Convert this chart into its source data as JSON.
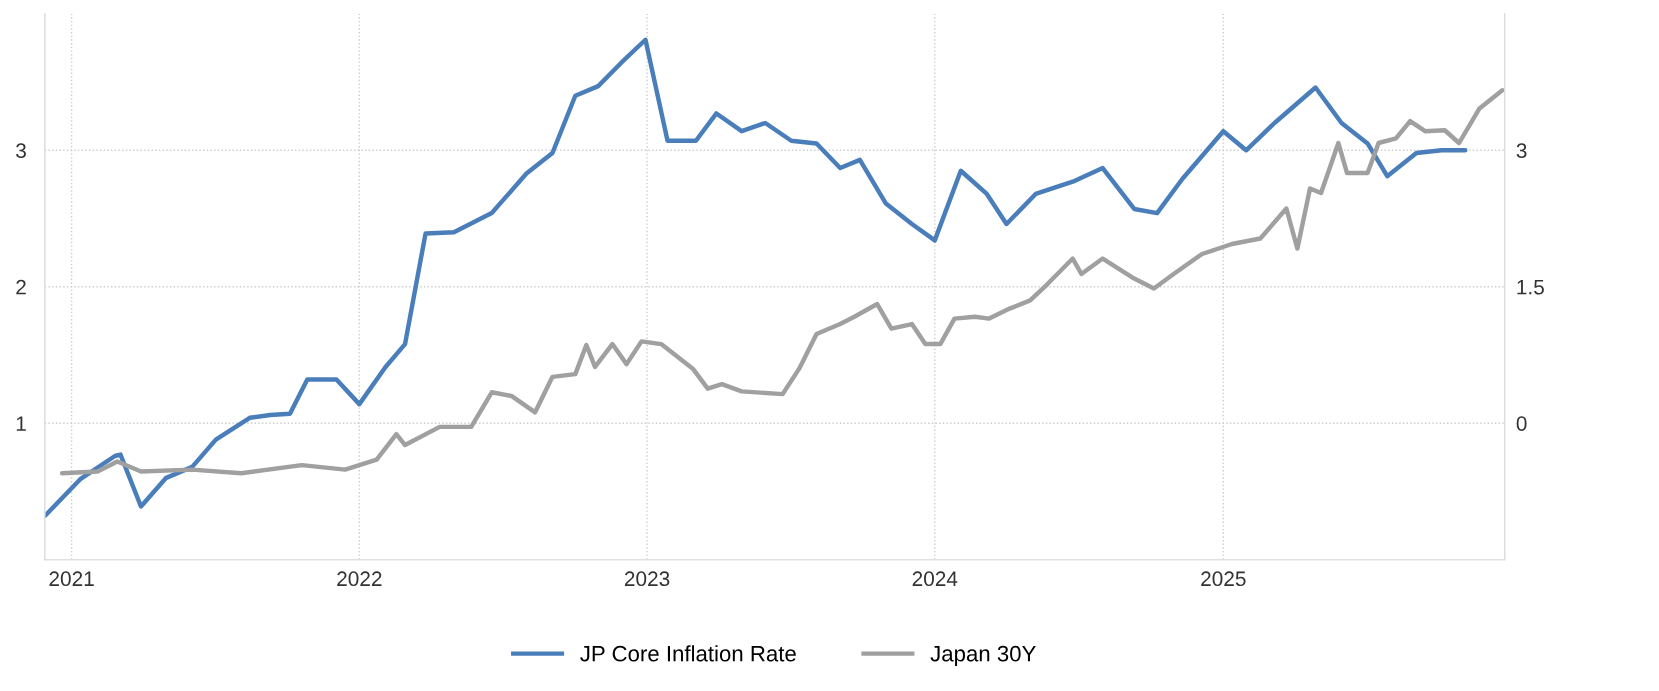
{
  "chart_data": {
    "type": "line",
    "xlim": [
      "2020-11-28",
      "2025-12-24"
    ],
    "xticks": [
      {
        "value": "2021-01-01",
        "label": "2021"
      },
      {
        "value": "2022-01-01",
        "label": "2022"
      },
      {
        "value": "2023-01-01",
        "label": "2023"
      },
      {
        "value": "2024-01-01",
        "label": "2024"
      },
      {
        "value": "2025-01-01",
        "label": "2025"
      }
    ],
    "ylim": [
      0,
      4
    ],
    "yticks": [
      1,
      2,
      3
    ],
    "y2lim": [
      -1.5,
      4.5
    ],
    "y2ticks": [
      0,
      1.5,
      3
    ],
    "grid": true,
    "legend": "bottom",
    "marker": "none",
    "line_style": "solid",
    "series": [
      {
        "name": "JP Core Inflation Rate",
        "color": "#4a7ebb",
        "x": [
          "2020-11-28",
          "2021-01-12",
          "2021-02-25",
          "2021-03-04",
          "2021-03-30",
          "2021-05-01",
          "2021-06-03",
          "2021-07-03",
          "2021-08-15",
          "2021-09-10",
          "2021-10-05",
          "2021-10-27",
          "2021-12-03",
          "2022-01-01",
          "2022-02-03",
          "2022-02-28",
          "2022-03-26",
          "2022-05-01",
          "2022-06-18",
          "2022-08-01",
          "2022-09-03",
          "2022-10-02",
          "2022-10-31",
          "2022-11-29",
          "2022-12-30",
          "2023-01-27",
          "2023-03-04",
          "2023-03-30",
          "2023-05-01",
          "2023-05-31",
          "2023-07-03",
          "2023-08-04",
          "2023-09-03",
          "2023-09-28",
          "2023-10-31",
          "2023-12-03",
          "2024-01-01",
          "2024-02-03",
          "2024-03-07",
          "2024-04-01",
          "2024-05-08",
          "2024-06-24",
          "2024-08-01",
          "2024-09-10",
          "2024-10-09",
          "2024-11-10",
          "2025-01-01",
          "2025-01-30",
          "2025-03-07",
          "2025-04-28",
          "2025-05-31",
          "2025-07-03",
          "2025-07-28",
          "2025-09-03",
          "2025-10-05",
          "2025-11-04"
        ],
        "values": [
          0.32,
          0.59,
          0.76,
          0.77,
          0.39,
          0.6,
          0.68,
          0.88,
          1.04,
          1.06,
          1.07,
          1.32,
          1.32,
          1.14,
          1.41,
          1.58,
          2.39,
          2.4,
          2.54,
          2.83,
          2.98,
          3.4,
          3.47,
          3.64,
          3.81,
          3.07,
          3.07,
          3.27,
          3.14,
          3.2,
          3.07,
          3.05,
          2.87,
          2.93,
          2.61,
          2.46,
          2.34,
          2.85,
          2.68,
          2.46,
          2.68,
          2.77,
          2.87,
          2.57,
          2.54,
          2.79,
          3.14,
          3.0,
          3.2,
          3.46,
          3.2,
          3.05,
          2.81,
          2.98,
          3.0,
          3.0
        ]
      },
      {
        "name": "Japan 30Y",
        "color": "#a0a0a0",
        "axis": "y2",
        "x": [
          "2020-12-20",
          "2021-02-03",
          "2021-02-28",
          "2021-03-30",
          "2021-06-03",
          "2021-08-04",
          "2021-10-20",
          "2021-12-14",
          "2022-01-23",
          "2022-02-17",
          "2022-02-28",
          "2022-04-13",
          "2022-05-23",
          "2022-06-18",
          "2022-07-13",
          "2022-08-12",
          "2022-09-03",
          "2022-10-02",
          "2022-10-16",
          "2022-10-27",
          "2022-11-18",
          "2022-12-06",
          "2022-12-25",
          "2023-01-19",
          "2023-02-28",
          "2023-03-19",
          "2023-04-06",
          "2023-05-01",
          "2023-06-22",
          "2023-07-13",
          "2023-08-04",
          "2023-09-03",
          "2023-09-21",
          "2023-10-20",
          "2023-11-07",
          "2023-12-03",
          "2023-12-20",
          "2024-01-08",
          "2024-01-26",
          "2024-02-21",
          "2024-03-10",
          "2024-04-05",
          "2024-05-01",
          "2024-05-23",
          "2024-06-24",
          "2024-07-05",
          "2024-08-01",
          "2024-09-10",
          "2024-10-05",
          "2024-10-30",
          "2024-12-05",
          "2025-01-12",
          "2025-02-17",
          "2025-03-22",
          "2025-04-05",
          "2025-04-21",
          "2025-05-05",
          "2025-05-27",
          "2025-06-07",
          "2025-07-03",
          "2025-07-17",
          "2025-08-08",
          "2025-08-26",
          "2025-09-14",
          "2025-10-09",
          "2025-10-27",
          "2025-11-22",
          "2025-12-21"
        ],
        "values": [
          -0.55,
          -0.53,
          -0.42,
          -0.53,
          -0.51,
          -0.55,
          -0.46,
          -0.51,
          -0.4,
          -0.12,
          -0.24,
          -0.04,
          -0.04,
          0.34,
          0.3,
          0.12,
          0.51,
          0.54,
          0.86,
          0.62,
          0.87,
          0.65,
          0.9,
          0.87,
          0.6,
          0.38,
          0.43,
          0.35,
          0.32,
          0.6,
          0.98,
          1.09,
          1.17,
          1.31,
          1.04,
          1.09,
          0.87,
          0.87,
          1.15,
          1.17,
          1.15,
          1.26,
          1.35,
          1.53,
          1.81,
          1.64,
          1.81,
          1.59,
          1.48,
          1.64,
          1.86,
          1.97,
          2.03,
          2.36,
          1.92,
          2.58,
          2.53,
          3.08,
          2.75,
          2.75,
          3.08,
          3.13,
          3.32,
          3.21,
          3.22,
          3.08,
          3.46,
          3.66
        ]
      }
    ]
  }
}
